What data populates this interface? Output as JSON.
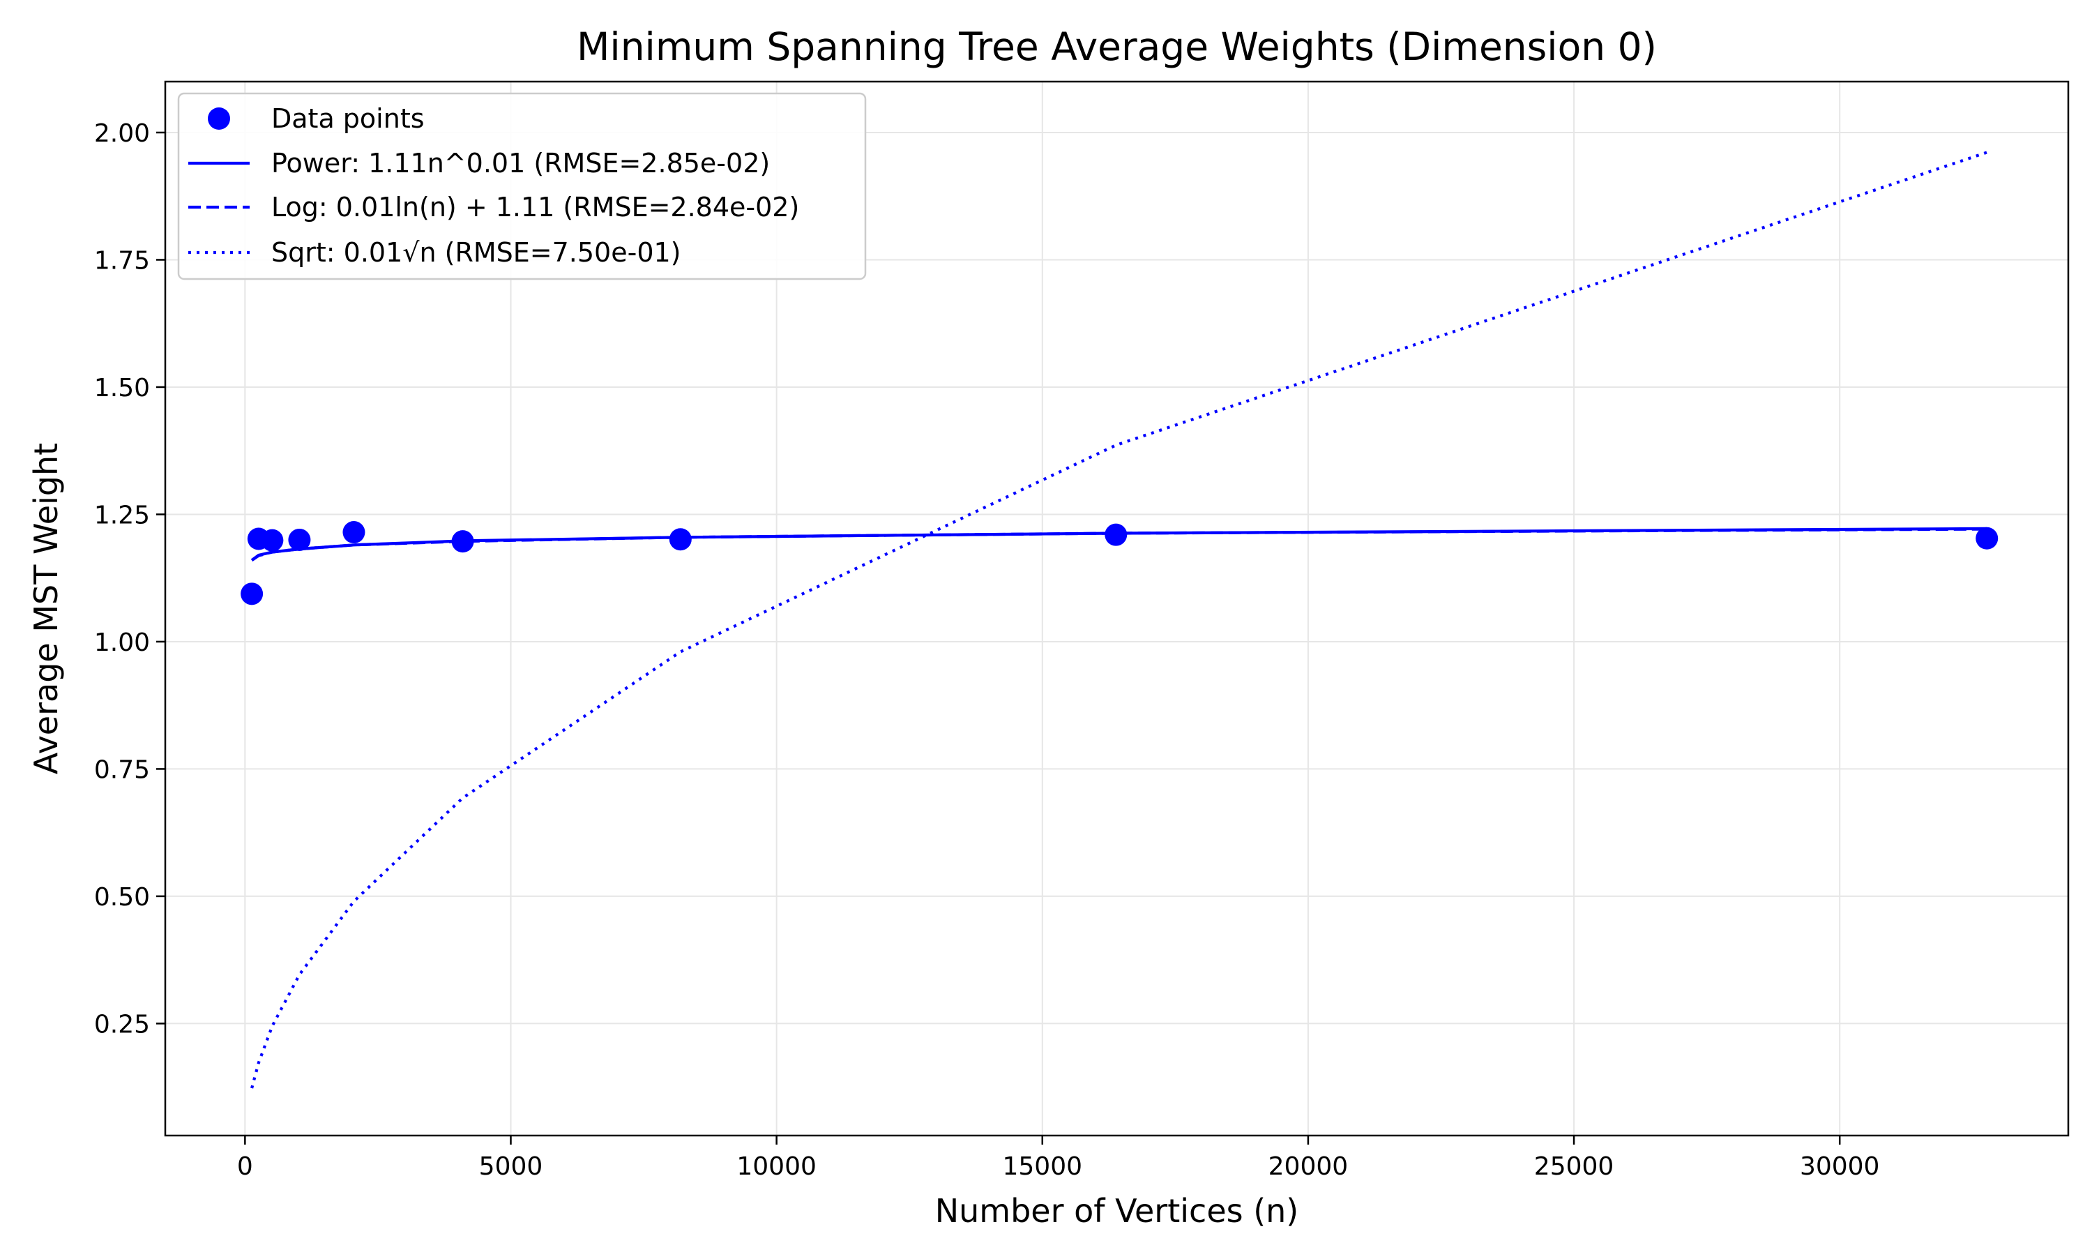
{
  "chart_data": {
    "type": "line",
    "title": "Minimum Spanning Tree Average Weights (Dimension 0)",
    "xlabel": "Number of Vertices (n)",
    "ylabel": "Average MST Weight",
    "xlim": [
      -1500,
      34300
    ],
    "ylim": [
      0.03,
      2.1
    ],
    "x_ticks": [
      0,
      5000,
      10000,
      15000,
      20000,
      25000,
      30000
    ],
    "y_ticks": [
      0.25,
      0.5,
      0.75,
      1.0,
      1.25,
      1.5,
      1.75,
      2.0
    ],
    "x_tick_labels": [
      "0",
      "5000",
      "10000",
      "15000",
      "20000",
      "25000",
      "30000"
    ],
    "y_tick_labels": [
      "0.25",
      "0.50",
      "0.75",
      "1.00",
      "1.25",
      "1.50",
      "1.75",
      "2.00"
    ],
    "grid": true,
    "legend_position": "top-left",
    "color": "#0000ff",
    "series": [
      {
        "name": "Data points",
        "kind": "scatter",
        "x": [
          128,
          256,
          512,
          1024,
          2048,
          4096,
          8192,
          16384,
          32768
        ],
        "y": [
          1.094,
          1.202,
          1.199,
          1.2,
          1.215,
          1.197,
          1.201,
          1.21,
          1.203
        ]
      },
      {
        "name": "Power: 1.11n^0.01 (RMSE=2.85e-02)",
        "kind": "line",
        "style": "solid",
        "x": [
          128,
          256,
          512,
          1024,
          2048,
          4096,
          8192,
          16384,
          32768
        ],
        "y": [
          1.16,
          1.17,
          1.176,
          1.182,
          1.19,
          1.198,
          1.205,
          1.213,
          1.222
        ]
      },
      {
        "name": "Log: 0.01ln(n) + 1.11 (RMSE=2.84e-02)",
        "kind": "line",
        "style": "dashed",
        "x": [
          128,
          256,
          512,
          1024,
          2048,
          4096,
          8192,
          16384,
          32768
        ],
        "y": [
          1.16,
          1.169,
          1.176,
          1.182,
          1.19,
          1.197,
          1.205,
          1.213,
          1.221
        ]
      },
      {
        "name": "Sqrt: 0.01√n (RMSE=7.50e-01)",
        "kind": "line",
        "style": "dotted",
        "x": [
          128,
          256,
          512,
          1024,
          2048,
          4096,
          8192,
          16384,
          32768
        ],
        "y": [
          0.123,
          0.173,
          0.245,
          0.346,
          0.49,
          0.693,
          0.98,
          1.386,
          1.961
        ]
      }
    ]
  }
}
